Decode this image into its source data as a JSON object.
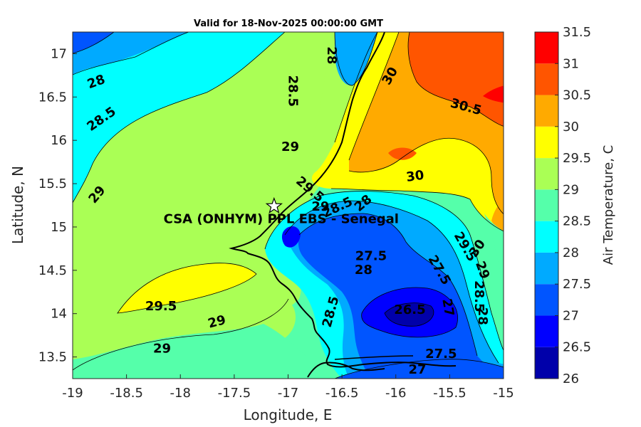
{
  "chart_data": {
    "type": "heatmap",
    "title": "Valid for 18-Nov-2025 00:00:00 GMT",
    "xlabel": "Longitude, E",
    "ylabel": "Latitude, N",
    "xlim": [
      -19,
      -15
    ],
    "ylim": [
      13.25,
      17.25
    ],
    "x_ticks": [
      -19,
      -18.5,
      -18,
      -17.5,
      -17,
      -16.5,
      -16,
      -15.5,
      -15
    ],
    "x_tick_labels": [
      "-19",
      "-18.5",
      "-18",
      "-17.5",
      "-17",
      "-16.5",
      "-16",
      "-15.5",
      "-15"
    ],
    "y_ticks": [
      13.5,
      14,
      14.5,
      15,
      15.5,
      16,
      16.5,
      17
    ],
    "y_tick_labels": [
      "13.5",
      "14",
      "14.5",
      "15",
      "15.5",
      "16",
      "16.5",
      "17"
    ],
    "colorbar": {
      "label": "Air Temperature, C",
      "min": 26,
      "max": 31.5,
      "ticks": [
        26,
        26.5,
        27,
        27.5,
        28,
        28.5,
        29,
        29.5,
        30,
        30.5,
        31,
        31.5
      ],
      "tick_labels": [
        "26",
        "26.5",
        "27",
        "27.5",
        "28",
        "28.5",
        "29",
        "29.5",
        "30",
        "30.5",
        "31",
        "31.5"
      ],
      "colors": [
        "#0000aa",
        "#0000ff",
        "#0055ff",
        "#00aaff",
        "#00ffff",
        "#55ffaa",
        "#aaff55",
        "#ffff00",
        "#ffaa00",
        "#ff5500",
        "#ff0000",
        "#aa0000"
      ]
    },
    "site": {
      "name": "CSA (ONHYM) PPL EBS  - Senegal",
      "lon": -17.13,
      "lat": 15.24
    },
    "contour_labels": [
      {
        "text": "28",
        "lon": -18.78,
        "lat": 16.67,
        "rot": -20
      },
      {
        "text": "28.5",
        "lon": -18.73,
        "lat": 16.24,
        "rot": -35
      },
      {
        "text": "29",
        "lon": -18.77,
        "lat": 15.37,
        "rot": -50
      },
      {
        "text": "28.5",
        "lon": -16.96,
        "lat": 16.57,
        "rot": 90
      },
      {
        "text": "28",
        "lon": -16.6,
        "lat": 16.98,
        "rot": 90
      },
      {
        "text": "30",
        "lon": -16.05,
        "lat": 16.74,
        "rot": -60
      },
      {
        "text": "30.5",
        "lon": -15.35,
        "lat": 16.38,
        "rot": 15
      },
      {
        "text": "29",
        "lon": -16.98,
        "lat": 15.92,
        "rot": 0
      },
      {
        "text": "30",
        "lon": -15.82,
        "lat": 15.58,
        "rot": -8
      },
      {
        "text": "29.5",
        "lon": -16.8,
        "lat": 15.43,
        "rot": 40
      },
      {
        "text": "29",
        "lon": -16.7,
        "lat": 15.23,
        "rot": 0
      },
      {
        "text": "28.5",
        "lon": -16.54,
        "lat": 15.22,
        "rot": -25
      },
      {
        "text": "28",
        "lon": -16.3,
        "lat": 15.27,
        "rot": -40
      },
      {
        "text": "27.5",
        "lon": -16.23,
        "lat": 14.66,
        "rot": 0
      },
      {
        "text": "28",
        "lon": -16.3,
        "lat": 14.5,
        "rot": 0
      },
      {
        "text": "27.5",
        "lon": -15.6,
        "lat": 14.5,
        "rot": 60
      },
      {
        "text": "27",
        "lon": -15.52,
        "lat": 14.07,
        "rot": 80
      },
      {
        "text": "26.5",
        "lon": -15.87,
        "lat": 14.04,
        "rot": 0
      },
      {
        "text": "29.5",
        "lon": -18.18,
        "lat": 14.08,
        "rot": 0
      },
      {
        "text": "29",
        "lon": -17.66,
        "lat": 13.9,
        "rot": -15
      },
      {
        "text": "29",
        "lon": -18.17,
        "lat": 13.59,
        "rot": 0
      },
      {
        "text": "28.5",
        "lon": -16.6,
        "lat": 14.02,
        "rot": -75
      },
      {
        "text": "27.5",
        "lon": -15.58,
        "lat": 13.53,
        "rot": 0
      },
      {
        "text": "27",
        "lon": -15.8,
        "lat": 13.35,
        "rot": 0
      },
      {
        "text": "29.5",
        "lon": -15.36,
        "lat": 14.77,
        "rot": 60
      },
      {
        "text": "30",
        "lon": -15.24,
        "lat": 14.75,
        "rot": -55
      },
      {
        "text": "29",
        "lon": -15.2,
        "lat": 14.5,
        "rot": 70
      },
      {
        "text": "28.5",
        "lon": -15.23,
        "lat": 14.2,
        "rot": 90
      },
      {
        "text": "28",
        "lon": -15.2,
        "lat": 13.97,
        "rot": 90
      }
    ]
  }
}
